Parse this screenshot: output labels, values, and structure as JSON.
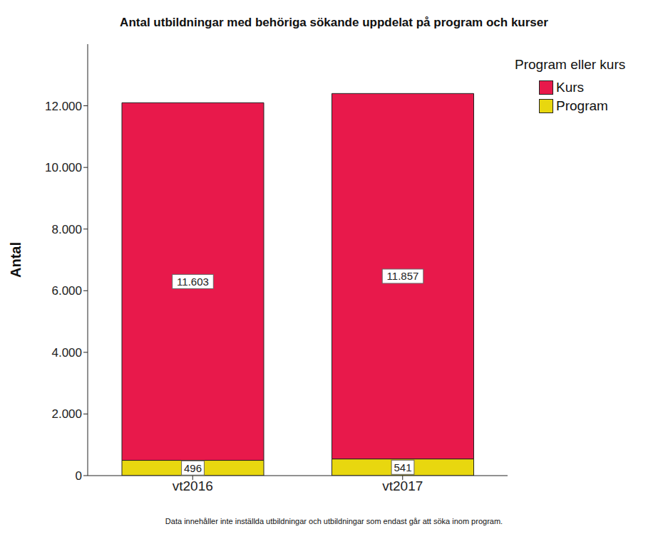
{
  "chart_data": {
    "type": "bar",
    "title": "Antal utbildningar med behöriga sökande uppdelat på program och kurser",
    "y_label": "Antal",
    "legend_title": "Program eller kurs",
    "caption": "Data innehåller inte inställda utbildningar och utbildningar som endast går att söka inom program.",
    "categories": [
      "vt2016",
      "vt2017"
    ],
    "series": [
      {
        "name": "Kurs",
        "color": "#e8194b",
        "values": [
          11603,
          11857
        ],
        "value_labels": [
          "11.603",
          "11.857"
        ]
      },
      {
        "name": "Program",
        "color": "#e8d70f",
        "values": [
          496,
          541
        ]
      }
    ],
    "stacked": true,
    "data_labels": true,
    "grid": false,
    "legend": "top-right",
    "ylim": [
      0,
      14000
    ],
    "yticks": [
      0,
      {
        "value": 2000,
        "label": "2.000"
      },
      {
        "value": 4000,
        "label": "4.000"
      },
      {
        "value": 6000,
        "label": "6.000"
      },
      {
        "value": 8000,
        "label": "8.000"
      },
      {
        "value": 10000,
        "label": "10.000"
      },
      {
        "value": 12000,
        "label": "12.000"
      }
    ]
  }
}
